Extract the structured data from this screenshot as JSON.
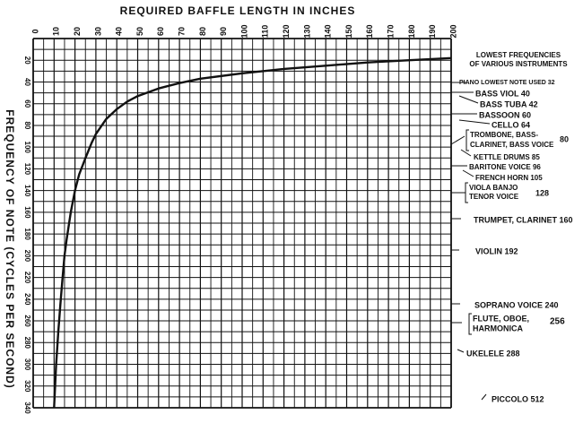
{
  "chart_data": {
    "type": "line",
    "title": "REQUIRED BAFFLE LENGTH IN INCHES",
    "ylabel": "FREQUENCY OF NOTE (CYCLES PER SECOND)",
    "xlim": [
      0,
      200
    ],
    "ylim": [
      0,
      340
    ],
    "y_inverted": true,
    "x_axis_position": "top",
    "grid": true,
    "x_ticks": [
      0,
      10,
      20,
      30,
      40,
      50,
      60,
      70,
      80,
      90,
      100,
      110,
      120,
      130,
      140,
      150,
      160,
      170,
      180,
      190,
      200
    ],
    "y_ticks": [
      20,
      40,
      60,
      80,
      100,
      120,
      140,
      160,
      180,
      200,
      220,
      240,
      260,
      280,
      300,
      320,
      340
    ],
    "series": [
      {
        "x": [
          10,
          11,
          12,
          13,
          14,
          15,
          16,
          18,
          20,
          22,
          25,
          28,
          30,
          35,
          40,
          45,
          50,
          60,
          70,
          80,
          100,
          120,
          140,
          160,
          180,
          200
        ],
        "y": [
          340,
          300,
          270,
          245,
          222,
          200,
          185,
          160,
          140,
          125,
          110,
          96,
          88,
          74,
          65,
          58,
          53,
          46,
          41,
          37,
          32,
          28,
          25,
          22,
          20,
          18
        ]
      }
    ],
    "legend_title": "LOWEST FREQUENCIES OF VARIOUS INSTRUMENTS",
    "annotations": [
      {
        "text": "PIANO LOWEST NOTE USED 32",
        "value": 32
      },
      {
        "text": "BASS VIOL 40",
        "value": 40
      },
      {
        "text": "BASS TUBA 42",
        "value": 42
      },
      {
        "text": "BASSOON 60",
        "value": 60
      },
      {
        "text": "CELLO 64",
        "value": 64
      },
      {
        "text": "TROMBONE, BASS-CLARINET, BASS VOICE 80",
        "value": 80
      },
      {
        "text": "KETTLE DRUMS 85",
        "value": 85
      },
      {
        "text": "BARITONE VOICE 96",
        "value": 96
      },
      {
        "text": "FRENCH HORN 105",
        "value": 105
      },
      {
        "text": "VIOLA BANJO TENOR VOICE 128",
        "value": 128
      },
      {
        "text": "TRUMPET, CLARINET 160",
        "value": 160
      },
      {
        "text": "VIOLIN 192",
        "value": 192
      },
      {
        "text": "SOPRANO VOICE 240",
        "value": 240
      },
      {
        "text": "FLUTE, OBOE, HARMONICA 256",
        "value": 256
      },
      {
        "text": "UKELELE 288",
        "value": 288
      },
      {
        "text": "PICCOLO 512",
        "value": 512
      }
    ]
  }
}
